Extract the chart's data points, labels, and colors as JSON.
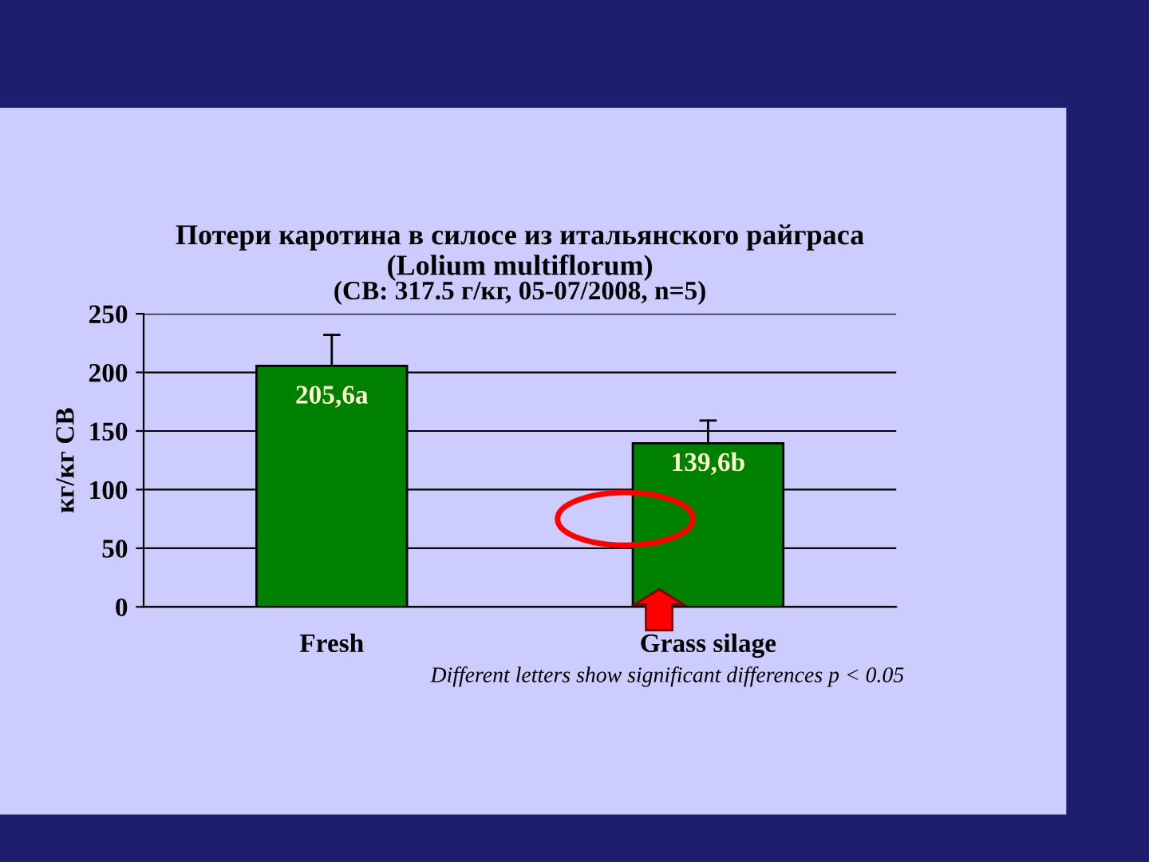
{
  "chart_data": {
    "type": "bar",
    "title": "Потери каротина в силосе из итальянского райграса\n(Lolium multiflorum)",
    "subtitle": "(СВ: 317.5 г/кг, 05-07/2008, n=5)",
    "ylabel": "кг/кг СВ",
    "categories": [
      "Fresh",
      "Grass silage"
    ],
    "values": [
      205.6,
      139.6
    ],
    "value_labels": [
      "205,6a",
      "139,6b"
    ],
    "errors": [
      [
        205.6,
        232
      ],
      [
        139.6,
        159
      ]
    ],
    "color": "#008000",
    "ylim": [
      0,
      250
    ],
    "yticks": [
      0,
      50,
      100,
      150,
      200,
      250
    ],
    "grid": "y",
    "legend": false,
    "annotations": [
      "Different letters show significant differences p < 0.05"
    ]
  }
}
